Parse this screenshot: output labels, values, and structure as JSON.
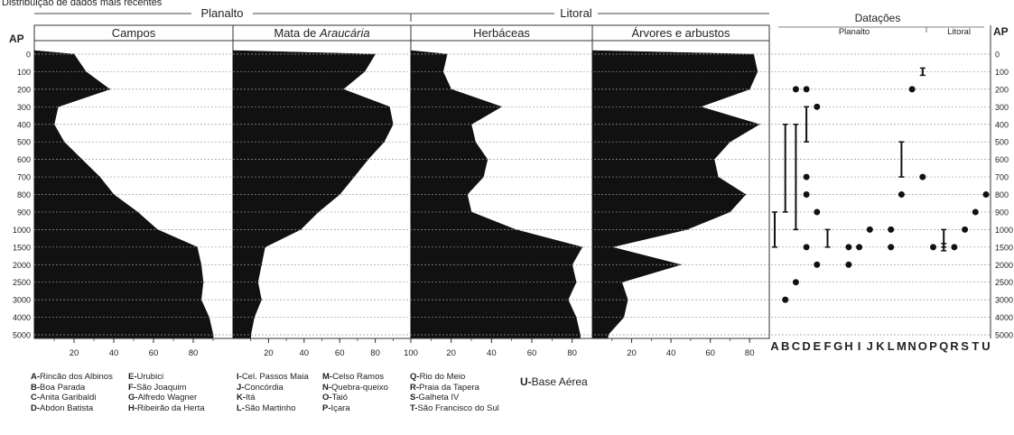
{
  "caption": "Distribuição de dados mais recentes",
  "group_planalto": "Planalto",
  "group_litoral": "Litoral",
  "ap_label": "AP",
  "age_ticks": [
    "0",
    "100",
    "200",
    "300",
    "400",
    "500",
    "600",
    "700",
    "800",
    "900",
    "1000",
    "1500",
    "2000",
    "2500",
    "3000",
    "4000",
    "5000"
  ],
  "chart_data": [
    {
      "type": "area",
      "title": "Campos",
      "x_ticks": [
        "20",
        "40",
        "60",
        "80"
      ],
      "xlim": [
        0,
        100
      ],
      "y_ages": [
        "0",
        "100",
        "200",
        "300",
        "400",
        "500",
        "600",
        "700",
        "800",
        "900",
        "1000",
        "1500",
        "2000",
        "2500",
        "3000",
        "4000",
        "5000"
      ],
      "values": [
        20,
        26,
        38,
        12,
        10,
        15,
        24,
        33,
        40,
        52,
        62,
        82,
        84,
        85,
        84,
        88,
        90
      ]
    },
    {
      "type": "area",
      "title": "Mata de ",
      "title_italic": "Araucária",
      "x_ticks": [
        "20",
        "40",
        "60",
        "80",
        "100"
      ],
      "xlim": [
        0,
        100
      ],
      "y_ages": [
        "0",
        "100",
        "200",
        "300",
        "400",
        "500",
        "600",
        "700",
        "800",
        "900",
        "1000",
        "1500",
        "2000",
        "2500",
        "3000",
        "4000",
        "5000"
      ],
      "values": [
        80,
        74,
        62,
        88,
        90,
        85,
        76,
        68,
        60,
        48,
        38,
        18,
        16,
        14,
        16,
        12,
        10
      ]
    },
    {
      "type": "area",
      "title": "Herbáceas",
      "x_ticks": [
        "20",
        "40",
        "60",
        "80"
      ],
      "xlim": [
        0,
        90
      ],
      "y_ages": [
        "0",
        "100",
        "200",
        "300",
        "400",
        "500",
        "600",
        "700",
        "800",
        "900",
        "1000",
        "1500",
        "2000",
        "2500",
        "3000",
        "4000",
        "5000"
      ],
      "values": [
        18,
        16,
        20,
        45,
        30,
        32,
        38,
        36,
        28,
        30,
        52,
        85,
        80,
        82,
        78,
        82,
        84
      ]
    },
    {
      "type": "area",
      "title": "Árvores e arbustos",
      "x_ticks": [
        "20",
        "40",
        "60",
        "80"
      ],
      "xlim": [
        0,
        90
      ],
      "y_ages": [
        "0",
        "100",
        "200",
        "300",
        "400",
        "500",
        "600",
        "700",
        "800",
        "900",
        "1000",
        "1500",
        "2000",
        "2500",
        "3000",
        "4000",
        "5000"
      ],
      "values": [
        82,
        84,
        80,
        55,
        85,
        70,
        62,
        64,
        78,
        70,
        48,
        10,
        45,
        15,
        18,
        16,
        8
      ]
    },
    {
      "type": "scatter",
      "title": "Datações",
      "subgroups": [
        "Planalto",
        "Litoral"
      ],
      "x_categories": [
        "A",
        "B",
        "C",
        "D",
        "E",
        "F",
        "G",
        "H",
        "I",
        "J",
        "K",
        "L",
        "M",
        "N",
        "O",
        "P",
        "Q",
        "R",
        "S",
        "T",
        "U"
      ],
      "points": [
        {
          "site": "B",
          "age": "3000"
        },
        {
          "site": "C",
          "age": "200"
        },
        {
          "site": "C",
          "age": "2500"
        },
        {
          "site": "D",
          "age": "200"
        },
        {
          "site": "D",
          "age": "700"
        },
        {
          "site": "D",
          "age": "800"
        },
        {
          "site": "D",
          "age": "1500"
        },
        {
          "site": "E",
          "age": "300"
        },
        {
          "site": "E",
          "age": "900"
        },
        {
          "site": "E",
          "age": "2000"
        },
        {
          "site": "H",
          "age": "1500"
        },
        {
          "site": "H",
          "age": "2000"
        },
        {
          "site": "I",
          "age": "1500"
        },
        {
          "site": "J",
          "age": "1000"
        },
        {
          "site": "L",
          "age": "1000"
        },
        {
          "site": "L",
          "age": "1500"
        },
        {
          "site": "M",
          "age": "800"
        },
        {
          "site": "N",
          "age": "200"
        },
        {
          "site": "O",
          "age": "700"
        },
        {
          "site": "P",
          "age": "1500"
        },
        {
          "site": "R",
          "age": "1500"
        },
        {
          "site": "S",
          "age": "1000"
        },
        {
          "site": "T",
          "age": "900"
        },
        {
          "site": "U",
          "age": "800"
        }
      ],
      "ranges": [
        {
          "site": "A",
          "from": "900",
          "to": "1500"
        },
        {
          "site": "B",
          "from": "400",
          "to": "900"
        },
        {
          "site": "C",
          "from": "400",
          "to": "1000"
        },
        {
          "site": "D",
          "from": "300",
          "to": "500"
        },
        {
          "site": "F",
          "from": "1000",
          "to": "1500"
        },
        {
          "site": "M",
          "from": "500",
          "to": "700"
        },
        {
          "site": "O",
          "from": "100",
          "to": "100"
        },
        {
          "site": "Q",
          "from": "1000",
          "to": "1500"
        },
        {
          "site": "Q",
          "from": "1500",
          "to": "1500"
        }
      ]
    }
  ],
  "legend": {
    "col1": [
      {
        "k": "A-",
        "v": "Rincão dos Albinos"
      },
      {
        "k": "B-",
        "v": "Boa Parada"
      },
      {
        "k": "C-",
        "v": "Anita Garibaldi"
      },
      {
        "k": "D-",
        "v": "Abdon Batista"
      }
    ],
    "col2": [
      {
        "k": "E-",
        "v": "Urubici"
      },
      {
        "k": "F-",
        "v": "São Joaquim"
      },
      {
        "k": "G-",
        "v": "Alfredo Wagner"
      },
      {
        "k": "H-",
        "v": "Ribeirão da Herta"
      }
    ],
    "col3": [
      {
        "k": "I-",
        "v": "Cel. Passos Maia"
      },
      {
        "k": "J-",
        "v": "Concórdia"
      },
      {
        "k": "K-",
        "v": "Itá"
      },
      {
        "k": "L-",
        "v": "São Martinho"
      }
    ],
    "col4": [
      {
        "k": "M-",
        "v": "Celso Ramos"
      },
      {
        "k": "N-",
        "v": "Quebra-queixo"
      },
      {
        "k": "O-",
        "v": "Taió"
      },
      {
        "k": "P-",
        "v": "Içara"
      }
    ],
    "col5": [
      {
        "k": "Q-",
        "v": "Rio do Meio"
      },
      {
        "k": "R-",
        "v": "Praia da Tapera"
      },
      {
        "k": "S-",
        "v": "Galheta IV"
      },
      {
        "k": "T-",
        "v": "São Francisco do Sul"
      }
    ],
    "u_key": "U-",
    "u_val": "Base Aérea"
  }
}
